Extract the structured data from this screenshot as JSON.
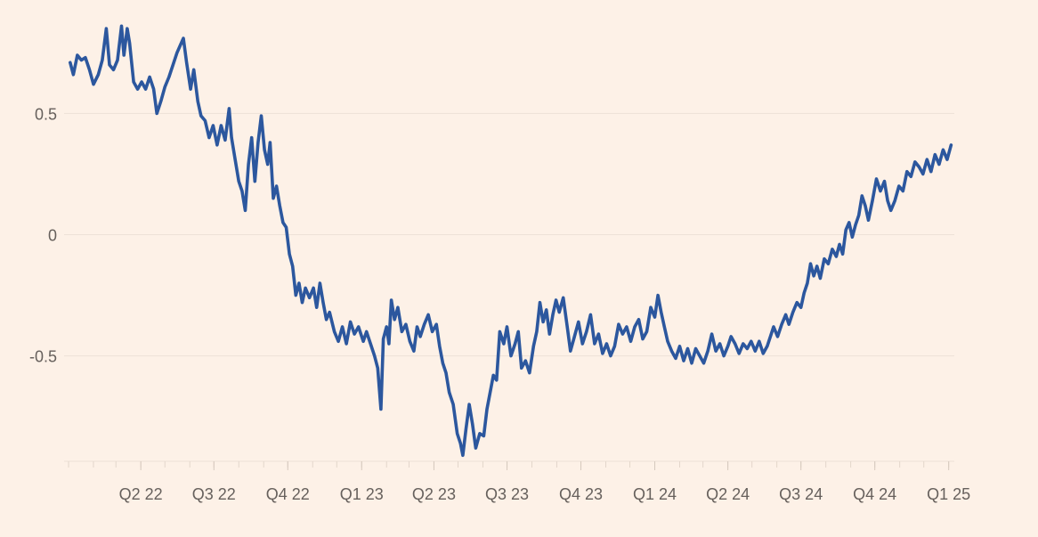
{
  "colors": {
    "background": "#fdf1e7",
    "line": "#2c579e",
    "grid": "#ede1d7",
    "axis_text": "#66605c"
  },
  "chart_data": {
    "type": "line",
    "title": "",
    "xlabel": "",
    "ylabel": "",
    "ylim": [
      -0.92,
      0.92
    ],
    "y_ticks": [
      0.5,
      0,
      -0.5
    ],
    "y_tick_labels": [
      "0.5",
      "0",
      "-0.5"
    ],
    "x_range": [
      "2022-01-01",
      "2025-01-08"
    ],
    "x_ticks": [
      {
        "label": "Q2 22",
        "date": "2022-04-01"
      },
      {
        "label": "Q3 22",
        "date": "2022-07-01"
      },
      {
        "label": "Q4 22",
        "date": "2022-10-01"
      },
      {
        "label": "Q1 23",
        "date": "2023-01-01"
      },
      {
        "label": "Q2 23",
        "date": "2023-04-01"
      },
      {
        "label": "Q3 23",
        "date": "2023-07-01"
      },
      {
        "label": "Q4 23",
        "date": "2023-10-01"
      },
      {
        "label": "Q1 24",
        "date": "2024-01-01"
      },
      {
        "label": "Q2 24",
        "date": "2024-04-01"
      },
      {
        "label": "Q3 24",
        "date": "2024-07-01"
      },
      {
        "label": "Q4 24",
        "date": "2024-10-01"
      },
      {
        "label": "Q1 25",
        "date": "2025-01-01"
      }
    ],
    "grid": true,
    "legend": "none",
    "series": [
      {
        "points": [
          [
            "2022-01-03",
            0.71
          ],
          [
            "2022-01-07",
            0.66
          ],
          [
            "2022-01-12",
            0.74
          ],
          [
            "2022-01-17",
            0.72
          ],
          [
            "2022-01-22",
            0.73
          ],
          [
            "2022-01-27",
            0.68
          ],
          [
            "2022-02-01",
            0.62
          ],
          [
            "2022-02-07",
            0.66
          ],
          [
            "2022-02-12",
            0.72
          ],
          [
            "2022-02-17",
            0.85
          ],
          [
            "2022-02-21",
            0.7
          ],
          [
            "2022-02-26",
            0.68
          ],
          [
            "2022-03-03",
            0.72
          ],
          [
            "2022-03-08",
            0.86
          ],
          [
            "2022-03-11",
            0.74
          ],
          [
            "2022-03-15",
            0.85
          ],
          [
            "2022-03-18",
            0.79
          ],
          [
            "2022-03-23",
            0.63
          ],
          [
            "2022-03-28",
            0.6
          ],
          [
            "2022-04-02",
            0.63
          ],
          [
            "2022-04-07",
            0.6
          ],
          [
            "2022-04-12",
            0.65
          ],
          [
            "2022-04-17",
            0.6
          ],
          [
            "2022-04-21",
            0.5
          ],
          [
            "2022-04-26",
            0.55
          ],
          [
            "2022-05-01",
            0.61
          ],
          [
            "2022-05-06",
            0.65
          ],
          [
            "2022-05-11",
            0.7
          ],
          [
            "2022-05-16",
            0.75
          ],
          [
            "2022-05-20",
            0.78
          ],
          [
            "2022-05-24",
            0.81
          ],
          [
            "2022-05-28",
            0.71
          ],
          [
            "2022-06-02",
            0.6
          ],
          [
            "2022-06-06",
            0.68
          ],
          [
            "2022-06-11",
            0.55
          ],
          [
            "2022-06-15",
            0.49
          ],
          [
            "2022-06-20",
            0.47
          ],
          [
            "2022-06-25",
            0.4
          ],
          [
            "2022-06-30",
            0.45
          ],
          [
            "2022-07-05",
            0.37
          ],
          [
            "2022-07-10",
            0.45
          ],
          [
            "2022-07-15",
            0.39
          ],
          [
            "2022-07-20",
            0.52
          ],
          [
            "2022-07-23",
            0.4
          ],
          [
            "2022-07-27",
            0.32
          ],
          [
            "2022-08-01",
            0.22
          ],
          [
            "2022-08-05",
            0.18
          ],
          [
            "2022-08-09",
            0.1
          ],
          [
            "2022-08-13",
            0.29
          ],
          [
            "2022-08-17",
            0.4
          ],
          [
            "2022-08-21",
            0.22
          ],
          [
            "2022-08-25",
            0.38
          ],
          [
            "2022-08-29",
            0.49
          ],
          [
            "2022-09-02",
            0.35
          ],
          [
            "2022-09-06",
            0.29
          ],
          [
            "2022-09-09",
            0.38
          ],
          [
            "2022-09-13",
            0.15
          ],
          [
            "2022-09-17",
            0.2
          ],
          [
            "2022-09-21",
            0.12
          ],
          [
            "2022-09-25",
            0.05
          ],
          [
            "2022-09-29",
            0.03
          ],
          [
            "2022-10-03",
            -0.08
          ],
          [
            "2022-10-07",
            -0.13
          ],
          [
            "2022-10-11",
            -0.25
          ],
          [
            "2022-10-15",
            -0.2
          ],
          [
            "2022-10-19",
            -0.28
          ],
          [
            "2022-10-23",
            -0.22
          ],
          [
            "2022-10-28",
            -0.26
          ],
          [
            "2022-11-02",
            -0.22
          ],
          [
            "2022-11-06",
            -0.3
          ],
          [
            "2022-11-10",
            -0.2
          ],
          [
            "2022-11-14",
            -0.28
          ],
          [
            "2022-11-18",
            -0.35
          ],
          [
            "2022-11-22",
            -0.32
          ],
          [
            "2022-11-28",
            -0.4
          ],
          [
            "2022-12-03",
            -0.44
          ],
          [
            "2022-12-08",
            -0.38
          ],
          [
            "2022-12-13",
            -0.45
          ],
          [
            "2022-12-18",
            -0.36
          ],
          [
            "2022-12-23",
            -0.41
          ],
          [
            "2022-12-28",
            -0.38
          ],
          [
            "2023-01-03",
            -0.44
          ],
          [
            "2023-01-07",
            -0.4
          ],
          [
            "2023-01-12",
            -0.45
          ],
          [
            "2023-01-17",
            -0.5
          ],
          [
            "2023-01-21",
            -0.55
          ],
          [
            "2023-01-25",
            -0.72
          ],
          [
            "2023-01-28",
            -0.43
          ],
          [
            "2023-02-01",
            -0.38
          ],
          [
            "2023-02-04",
            -0.45
          ],
          [
            "2023-02-07",
            -0.27
          ],
          [
            "2023-02-11",
            -0.35
          ],
          [
            "2023-02-15",
            -0.3
          ],
          [
            "2023-02-20",
            -0.4
          ],
          [
            "2023-02-25",
            -0.37
          ],
          [
            "2023-03-02",
            -0.44
          ],
          [
            "2023-03-07",
            -0.48
          ],
          [
            "2023-03-11",
            -0.38
          ],
          [
            "2023-03-15",
            -0.42
          ],
          [
            "2023-03-20",
            -0.37
          ],
          [
            "2023-03-25",
            -0.33
          ],
          [
            "2023-03-30",
            -0.4
          ],
          [
            "2023-04-04",
            -0.37
          ],
          [
            "2023-04-08",
            -0.46
          ],
          [
            "2023-04-12",
            -0.53
          ],
          [
            "2023-04-16",
            -0.57
          ],
          [
            "2023-04-20",
            -0.65
          ],
          [
            "2023-04-25",
            -0.7
          ],
          [
            "2023-04-30",
            -0.82
          ],
          [
            "2023-05-04",
            -0.86
          ],
          [
            "2023-05-07",
            -0.91
          ],
          [
            "2023-05-11",
            -0.8
          ],
          [
            "2023-05-15",
            -0.7
          ],
          [
            "2023-05-19",
            -0.78
          ],
          [
            "2023-05-23",
            -0.88
          ],
          [
            "2023-05-28",
            -0.82
          ],
          [
            "2023-06-02",
            -0.83
          ],
          [
            "2023-06-06",
            -0.72
          ],
          [
            "2023-06-10",
            -0.65
          ],
          [
            "2023-06-14",
            -0.58
          ],
          [
            "2023-06-18",
            -0.6
          ],
          [
            "2023-06-22",
            -0.4
          ],
          [
            "2023-06-27",
            -0.45
          ],
          [
            "2023-07-01",
            -0.38
          ],
          [
            "2023-07-06",
            -0.5
          ],
          [
            "2023-07-11",
            -0.45
          ],
          [
            "2023-07-15",
            -0.4
          ],
          [
            "2023-07-19",
            -0.55
          ],
          [
            "2023-07-24",
            -0.52
          ],
          [
            "2023-07-29",
            -0.57
          ],
          [
            "2023-08-03",
            -0.46
          ],
          [
            "2023-08-07",
            -0.4
          ],
          [
            "2023-08-11",
            -0.28
          ],
          [
            "2023-08-15",
            -0.36
          ],
          [
            "2023-08-19",
            -0.31
          ],
          [
            "2023-08-23",
            -0.41
          ],
          [
            "2023-08-27",
            -0.33
          ],
          [
            "2023-08-31",
            -0.27
          ],
          [
            "2023-09-04",
            -0.32
          ],
          [
            "2023-09-09",
            -0.26
          ],
          [
            "2023-09-14",
            -0.38
          ],
          [
            "2023-09-18",
            -0.48
          ],
          [
            "2023-09-23",
            -0.42
          ],
          [
            "2023-09-28",
            -0.36
          ],
          [
            "2023-10-03",
            -0.45
          ],
          [
            "2023-10-08",
            -0.4
          ],
          [
            "2023-10-13",
            -0.33
          ],
          [
            "2023-10-18",
            -0.45
          ],
          [
            "2023-10-23",
            -0.41
          ],
          [
            "2023-10-28",
            -0.49
          ],
          [
            "2023-11-02",
            -0.45
          ],
          [
            "2023-11-07",
            -0.5
          ],
          [
            "2023-11-12",
            -0.46
          ],
          [
            "2023-11-17",
            -0.37
          ],
          [
            "2023-11-22",
            -0.41
          ],
          [
            "2023-11-27",
            -0.38
          ],
          [
            "2023-12-02",
            -0.44
          ],
          [
            "2023-12-07",
            -0.38
          ],
          [
            "2023-12-12",
            -0.35
          ],
          [
            "2023-12-17",
            -0.43
          ],
          [
            "2023-12-22",
            -0.4
          ],
          [
            "2023-12-27",
            -0.3
          ],
          [
            "2024-01-01",
            -0.34
          ],
          [
            "2024-01-05",
            -0.25
          ],
          [
            "2024-01-09",
            -0.32
          ],
          [
            "2024-01-13",
            -0.38
          ],
          [
            "2024-01-17",
            -0.44
          ],
          [
            "2024-01-22",
            -0.48
          ],
          [
            "2024-01-27",
            -0.51
          ],
          [
            "2024-02-01",
            -0.46
          ],
          [
            "2024-02-06",
            -0.52
          ],
          [
            "2024-02-11",
            -0.47
          ],
          [
            "2024-02-16",
            -0.53
          ],
          [
            "2024-02-21",
            -0.47
          ],
          [
            "2024-02-26",
            -0.5
          ],
          [
            "2024-03-02",
            -0.53
          ],
          [
            "2024-03-07",
            -0.48
          ],
          [
            "2024-03-12",
            -0.41
          ],
          [
            "2024-03-17",
            -0.48
          ],
          [
            "2024-03-22",
            -0.45
          ],
          [
            "2024-03-27",
            -0.5
          ],
          [
            "2024-04-01",
            -0.46
          ],
          [
            "2024-04-05",
            -0.42
          ],
          [
            "2024-04-10",
            -0.45
          ],
          [
            "2024-04-15",
            -0.49
          ],
          [
            "2024-04-20",
            -0.45
          ],
          [
            "2024-04-25",
            -0.47
          ],
          [
            "2024-04-30",
            -0.44
          ],
          [
            "2024-05-05",
            -0.48
          ],
          [
            "2024-05-10",
            -0.44
          ],
          [
            "2024-05-15",
            -0.49
          ],
          [
            "2024-05-20",
            -0.46
          ],
          [
            "2024-05-24",
            -0.42
          ],
          [
            "2024-05-28",
            -0.38
          ],
          [
            "2024-06-02",
            -0.42
          ],
          [
            "2024-06-07",
            -0.37
          ],
          [
            "2024-06-12",
            -0.33
          ],
          [
            "2024-06-16",
            -0.37
          ],
          [
            "2024-06-21",
            -0.32
          ],
          [
            "2024-06-26",
            -0.28
          ],
          [
            "2024-07-01",
            -0.3
          ],
          [
            "2024-07-05",
            -0.24
          ],
          [
            "2024-07-09",
            -0.2
          ],
          [
            "2024-07-13",
            -0.12
          ],
          [
            "2024-07-17",
            -0.17
          ],
          [
            "2024-07-21",
            -0.13
          ],
          [
            "2024-07-25",
            -0.18
          ],
          [
            "2024-07-30",
            -0.1
          ],
          [
            "2024-08-04",
            -0.12
          ],
          [
            "2024-08-09",
            -0.06
          ],
          [
            "2024-08-14",
            -0.09
          ],
          [
            "2024-08-18",
            -0.04
          ],
          [
            "2024-08-22",
            -0.08
          ],
          [
            "2024-08-26",
            0.02
          ],
          [
            "2024-08-30",
            0.05
          ],
          [
            "2024-09-03",
            -0.01
          ],
          [
            "2024-09-07",
            0.04
          ],
          [
            "2024-09-11",
            0.08
          ],
          [
            "2024-09-15",
            0.16
          ],
          [
            "2024-09-19",
            0.12
          ],
          [
            "2024-09-23",
            0.06
          ],
          [
            "2024-09-28",
            0.14
          ],
          [
            "2024-10-03",
            0.23
          ],
          [
            "2024-10-08",
            0.18
          ],
          [
            "2024-10-13",
            0.22
          ],
          [
            "2024-10-17",
            0.14
          ],
          [
            "2024-10-21",
            0.1
          ],
          [
            "2024-10-26",
            0.14
          ],
          [
            "2024-10-31",
            0.2
          ],
          [
            "2024-11-05",
            0.18
          ],
          [
            "2024-11-10",
            0.26
          ],
          [
            "2024-11-15",
            0.24
          ],
          [
            "2024-11-20",
            0.3
          ],
          [
            "2024-11-25",
            0.28
          ],
          [
            "2024-11-30",
            0.25
          ],
          [
            "2024-12-05",
            0.31
          ],
          [
            "2024-12-10",
            0.26
          ],
          [
            "2024-12-15",
            0.33
          ],
          [
            "2024-12-20",
            0.29
          ],
          [
            "2024-12-25",
            0.35
          ],
          [
            "2024-12-30",
            0.31
          ],
          [
            "2025-01-04",
            0.37
          ]
        ]
      }
    ]
  }
}
